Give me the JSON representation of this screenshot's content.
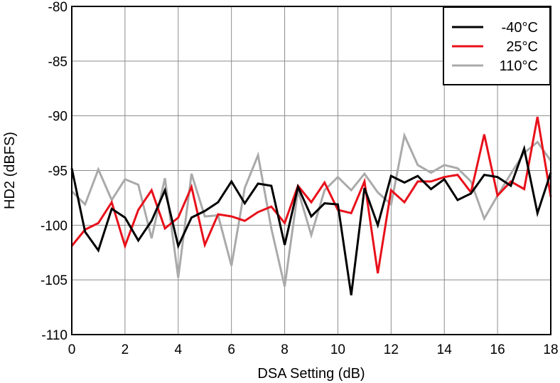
{
  "chart_data": {
    "type": "line",
    "title": "",
    "xlabel": "DSA Setting (dB)",
    "ylabel": "HD2 (dBFS)",
    "xlim": [
      0,
      18
    ],
    "ylim": [
      -110,
      -80
    ],
    "xticks": [
      0,
      2,
      4,
      6,
      8,
      10,
      12,
      14,
      16,
      18
    ],
    "xtick_labels": [
      "0",
      "2",
      "4",
      "6",
      "8",
      "10",
      "12",
      "14",
      "16",
      "18"
    ],
    "yticks": [
      -110,
      -105,
      -100,
      -95,
      -90,
      -85,
      -80
    ],
    "ytick_labels": [
      "-110",
      "-105",
      "-100",
      "-95",
      "-90",
      "-85",
      "-80"
    ],
    "grid": true,
    "legend_position": "top-right",
    "x": [
      0,
      0.5,
      1,
      1.5,
      2,
      2.5,
      3,
      3.5,
      4,
      4.5,
      5,
      5.5,
      6,
      6.5,
      7,
      7.5,
      8,
      8.5,
      9,
      9.5,
      10,
      10.5,
      11,
      11.5,
      12,
      12.5,
      13,
      13.5,
      14,
      14.5,
      15,
      15.5,
      16,
      16.5,
      17,
      17.5,
      18
    ],
    "series": [
      {
        "name": "-40°C",
        "color": "#000000",
        "values": [
          -94.8,
          -100.6,
          -102.3,
          -98.5,
          -99.3,
          -101.4,
          -99.6,
          -96.8,
          -101.9,
          -99.3,
          -98.7,
          -97.9,
          -96.0,
          -98.0,
          -96.2,
          -96.4,
          -101.8,
          -96.5,
          -99.2,
          -98.0,
          -98.1,
          -106.4,
          -96.6,
          -100.0,
          -95.5,
          -96.1,
          -95.5,
          -96.7,
          -95.8,
          -97.7,
          -97.1,
          -95.4,
          -95.6,
          -96.4,
          -93.0,
          -98.9,
          -95.2
        ]
      },
      {
        "name": "25°C",
        "color": "#e8101a",
        "values": [
          -101.9,
          -100.4,
          -99.8,
          -97.9,
          -101.9,
          -98.6,
          -96.8,
          -100.3,
          -99.3,
          -96.5,
          -101.8,
          -99.0,
          -99.2,
          -99.6,
          -98.8,
          -98.3,
          -99.8,
          -96.4,
          -97.9,
          -96.1,
          -98.6,
          -98.9,
          -96.0,
          -104.4,
          -96.8,
          -97.9,
          -96.0,
          -96.0,
          -95.6,
          -95.4,
          -97.0,
          -91.7,
          -97.3,
          -96.0,
          -96.7,
          -90.1,
          -97.4
        ]
      },
      {
        "name": "110°C",
        "color": "#aaaaaa",
        "values": [
          -96.9,
          -98.1,
          -94.9,
          -97.7,
          -95.8,
          -96.3,
          -101.2,
          -95.7,
          -104.8,
          -95.3,
          -99.2,
          -99.1,
          -103.7,
          -96.6,
          -93.6,
          -100.3,
          -105.6,
          -96.8,
          -100.9,
          -96.8,
          -95.6,
          -96.8,
          -95.3,
          -97.0,
          -98.1,
          -91.8,
          -94.5,
          -95.2,
          -94.5,
          -94.8,
          -96.0,
          -99.4,
          -97.3,
          -95.3,
          -93.4,
          -92.4,
          -94.1
        ]
      }
    ]
  }
}
